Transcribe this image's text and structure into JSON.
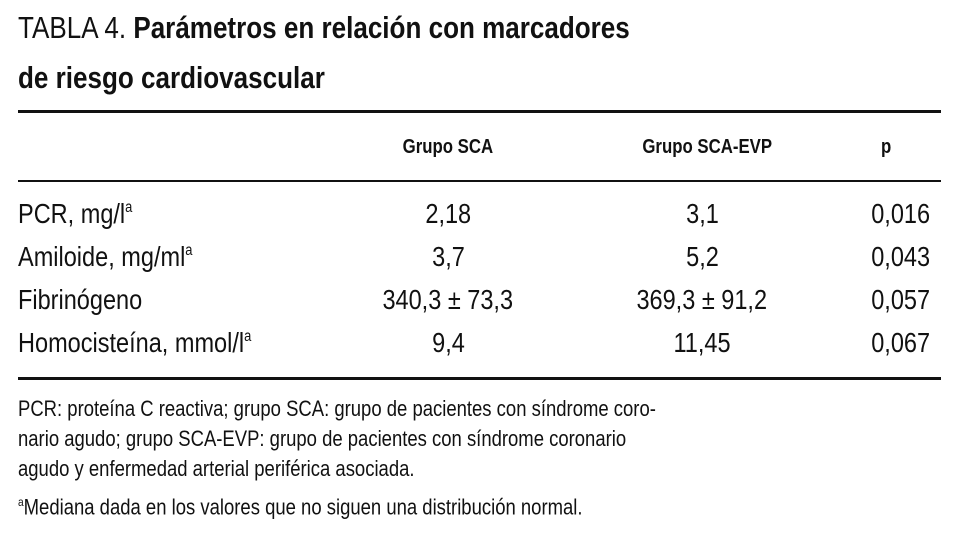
{
  "title": {
    "label": "TABLA 4.",
    "lines": [
      "Parámetros en relación con marcadores",
      "de riesgo cardiovascular"
    ]
  },
  "table": {
    "header": [
      "Grupo SCA",
      "Grupo SCA-EVP",
      "p"
    ],
    "rows": [
      {
        "label": "PCR, mg/l",
        "sup": "a",
        "cells": [
          "2,18",
          "3,1",
          "0,016"
        ]
      },
      {
        "label": "Amiloide, mg/ml",
        "sup": "a",
        "cells": [
          "3,7",
          "5,2",
          "0,043"
        ]
      },
      {
        "label": "Fibrinógeno",
        "cells": [
          "340,3 ± 73,3",
          "369,3 ± 91,2",
          "0,057"
        ]
      },
      {
        "label": "Homocisteína, mmol/l",
        "sup": "a",
        "cells": [
          "9,4",
          "11,45",
          "0,067"
        ]
      }
    ]
  },
  "footnotes": {
    "lines": [
      "PCR: proteína C reactiva; grupo SCA: grupo de pacientes con síndrome coro-",
      "nario agudo; grupo SCA-EVP: grupo de pacientes con síndrome coronario",
      "agudo y enfermedad arterial periférica asociada."
    ],
    "note": {
      "sup": "a",
      "text": "Mediana dada en los valores que no siguen una distribución normal."
    }
  }
}
